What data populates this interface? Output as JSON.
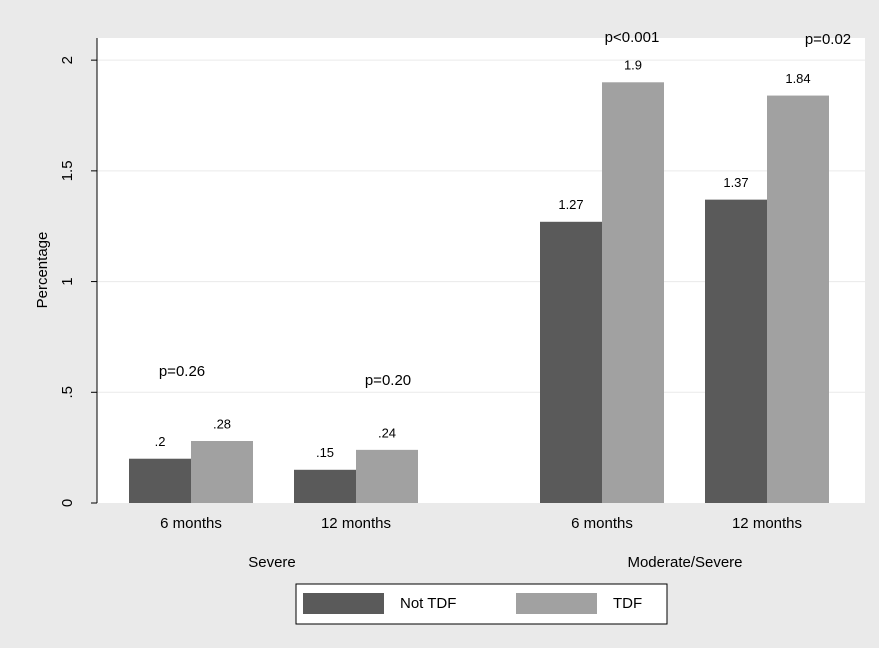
{
  "chart_data": {
    "type": "bar",
    "y_label": "Percentage",
    "categories": [
      "6 months",
      "12 months",
      "6 months",
      "12 months"
    ],
    "groups": [
      "Severe",
      "Moderate/Severe"
    ],
    "annotations": [
      "p=0.26",
      "p=0.20",
      "p<0.001",
      "p=0.02"
    ],
    "series": [
      {
        "name": "Not TDF",
        "color": "#5a5a5a",
        "values": [
          0.2,
          0.15,
          1.27,
          1.37
        ],
        "value_labels": [
          ".2",
          ".15",
          "1.27",
          "1.37"
        ]
      },
      {
        "name": "TDF",
        "color": "#a1a1a1",
        "values": [
          0.28,
          0.24,
          1.9,
          1.84
        ],
        "value_labels": [
          ".28",
          ".24",
          "1.9",
          "1.84"
        ]
      }
    ],
    "ylim": [
      0,
      2.1
    ],
    "yticks": [
      0,
      {
        "value": 0.5,
        "label": ".5"
      },
      1,
      1.5,
      2
    ],
    "grid": true,
    "legend": "bottom"
  }
}
